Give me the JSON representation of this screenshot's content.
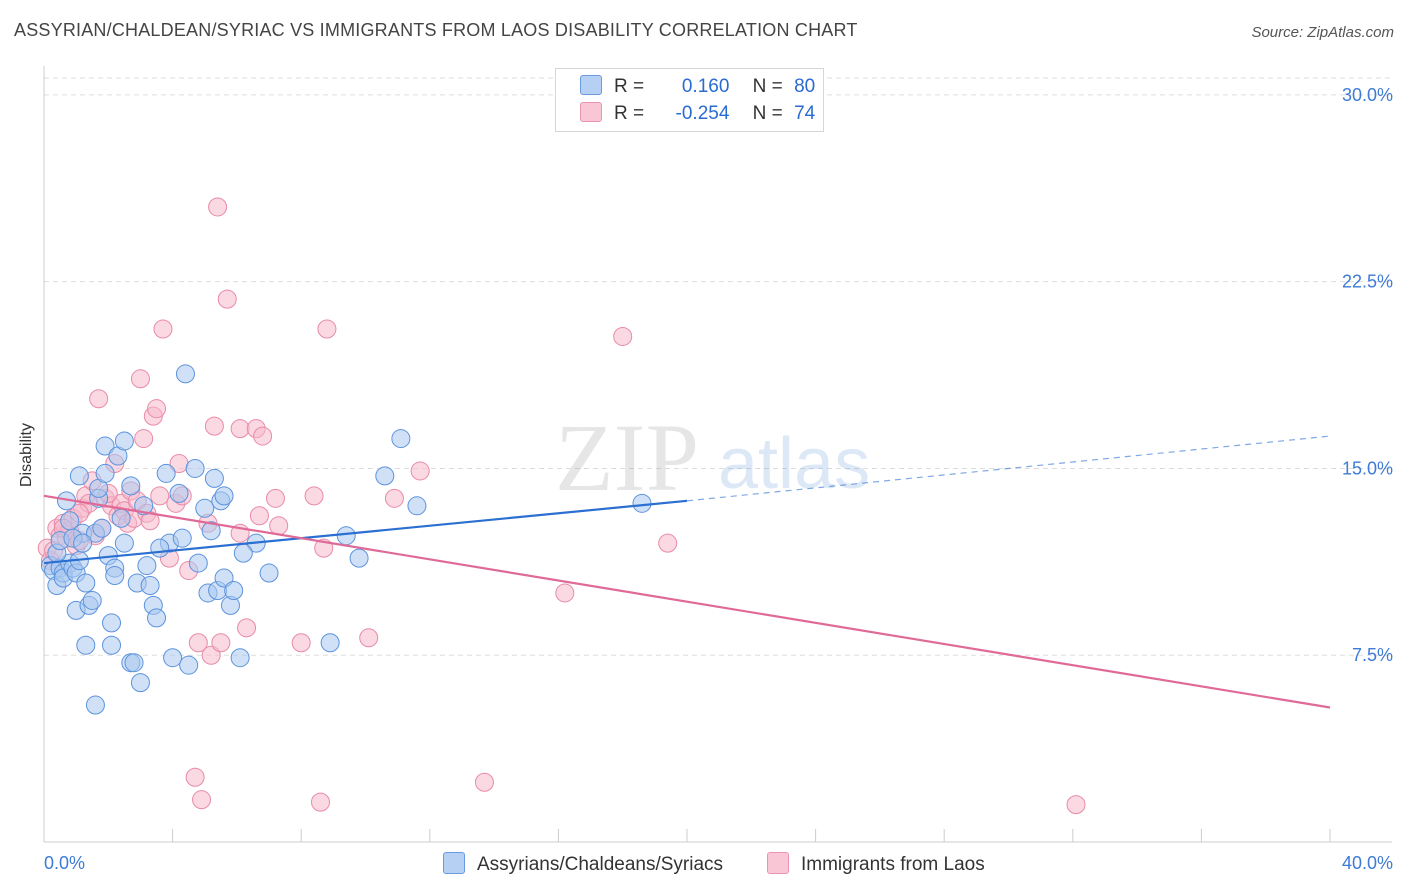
{
  "title": "ASSYRIAN/CHALDEAN/SYRIAC VS IMMIGRANTS FROM LAOS DISABILITY CORRELATION CHART",
  "source": "Source: ZipAtlas.com",
  "watermark": {
    "zip": "ZIP",
    "atlas": "atlas"
  },
  "legend": {
    "rows": [
      {
        "r_label": "R =",
        "r_value": "0.160",
        "n_label": "N =",
        "n_value": "80"
      },
      {
        "r_label": "R =",
        "r_value": "-0.254",
        "n_label": "N =",
        "n_value": "74"
      }
    ]
  },
  "colors": {
    "blue_fill": "#a9c8f0",
    "blue_stroke": "#5b93dd",
    "blue_line": "#2a6fd1",
    "pink_fill": "#f6b9cc",
    "pink_stroke": "#e98aa9",
    "pink_line": "#e06a97",
    "grid": "#dddddd",
    "axis_text": "#3d7bd6"
  },
  "chart_data": {
    "type": "scatter",
    "title": "ASSYRIAN/CHALDEAN/SYRIAC VS IMMIGRANTS FROM LAOS DISABILITY CORRELATION CHART",
    "xlabel": "",
    "ylabel": "Disability",
    "xlim": [
      0,
      40
    ],
    "ylim": [
      0,
      31
    ],
    "x_tick_labels": [
      "0.0%",
      "40.0%"
    ],
    "y_ticks": [
      7.5,
      15.0,
      22.5,
      30.0
    ],
    "y_tick_labels": [
      "7.5%",
      "15.0%",
      "22.5%",
      "30.0%"
    ],
    "grid": true,
    "series": [
      {
        "name": "Assyrians/Chaldeans/Syriacs",
        "color": "#5b93dd",
        "trend": {
          "x0": 0,
          "y0": 11.2,
          "x1": 20,
          "y1": 13.7,
          "dashed_to_x": 40,
          "dashed_to_y": 16.3
        },
        "points": [
          [
            0.2,
            11.1
          ],
          [
            0.3,
            10.9
          ],
          [
            0.4,
            10.3
          ],
          [
            0.5,
            11.0
          ],
          [
            0.6,
            10.8
          ],
          [
            0.6,
            10.6
          ],
          [
            0.7,
            13.7
          ],
          [
            0.8,
            11.2
          ],
          [
            0.8,
            12.9
          ],
          [
            0.9,
            11.0
          ],
          [
            1.0,
            10.8
          ],
          [
            1.0,
            9.3
          ],
          [
            1.1,
            14.7
          ],
          [
            1.1,
            11.3
          ],
          [
            1.2,
            12.4
          ],
          [
            1.3,
            10.4
          ],
          [
            1.3,
            7.9
          ],
          [
            1.4,
            9.5
          ],
          [
            1.5,
            9.7
          ],
          [
            1.6,
            5.5
          ],
          [
            1.6,
            12.4
          ],
          [
            1.7,
            13.8
          ],
          [
            1.7,
            14.2
          ],
          [
            1.8,
            12.6
          ],
          [
            1.9,
            15.9
          ],
          [
            1.9,
            14.8
          ],
          [
            2.0,
            11.5
          ],
          [
            2.1,
            8.8
          ],
          [
            2.1,
            7.9
          ],
          [
            2.2,
            11.0
          ],
          [
            2.3,
            15.5
          ],
          [
            2.4,
            13.0
          ],
          [
            2.5,
            16.1
          ],
          [
            2.5,
            12.0
          ],
          [
            2.7,
            14.3
          ],
          [
            2.7,
            7.2
          ],
          [
            2.8,
            7.2
          ],
          [
            2.9,
            10.4
          ],
          [
            3.0,
            6.4
          ],
          [
            3.1,
            13.5
          ],
          [
            3.2,
            11.1
          ],
          [
            3.3,
            10.3
          ],
          [
            3.4,
            9.5
          ],
          [
            3.5,
            9.0
          ],
          [
            3.8,
            14.8
          ],
          [
            3.9,
            12.0
          ],
          [
            4.0,
            7.4
          ],
          [
            4.2,
            14.0
          ],
          [
            4.3,
            12.2
          ],
          [
            4.4,
            18.8
          ],
          [
            4.5,
            7.1
          ],
          [
            4.7,
            15.0
          ],
          [
            5.0,
            13.4
          ],
          [
            5.1,
            10.0
          ],
          [
            5.2,
            12.5
          ],
          [
            5.3,
            14.6
          ],
          [
            5.4,
            10.1
          ],
          [
            5.5,
            13.7
          ],
          [
            5.6,
            13.9
          ],
          [
            5.6,
            10.6
          ],
          [
            5.8,
            9.5
          ],
          [
            5.9,
            10.1
          ],
          [
            6.1,
            7.4
          ],
          [
            6.6,
            12.0
          ],
          [
            7.0,
            10.8
          ],
          [
            8.9,
            8.0
          ],
          [
            9.4,
            12.3
          ],
          [
            9.8,
            11.4
          ],
          [
            10.6,
            14.7
          ],
          [
            11.1,
            16.2
          ],
          [
            11.6,
            13.5
          ],
          [
            18.6,
            13.6
          ],
          [
            0.4,
            11.6
          ],
          [
            0.5,
            12.1
          ],
          [
            0.9,
            12.2
          ],
          [
            1.2,
            12.0
          ],
          [
            2.2,
            10.7
          ],
          [
            3.6,
            11.8
          ],
          [
            4.8,
            11.2
          ],
          [
            6.2,
            11.6
          ]
        ]
      },
      {
        "name": "Immigrants from Laos",
        "color": "#e98aa9",
        "trend": {
          "x0": 0,
          "y0": 13.9,
          "x1": 40,
          "y1": 5.4
        },
        "points": [
          [
            0.1,
            11.8
          ],
          [
            0.2,
            11.3
          ],
          [
            0.3,
            11.7
          ],
          [
            0.4,
            12.6
          ],
          [
            0.5,
            12.3
          ],
          [
            0.6,
            12.8
          ],
          [
            0.7,
            12.2
          ],
          [
            0.8,
            12.5
          ],
          [
            0.9,
            13.0
          ],
          [
            1.0,
            11.9
          ],
          [
            1.1,
            12.1
          ],
          [
            1.2,
            13.4
          ],
          [
            1.3,
            13.9
          ],
          [
            1.4,
            13.6
          ],
          [
            1.6,
            12.3
          ],
          [
            1.7,
            17.8
          ],
          [
            1.8,
            12.6
          ],
          [
            1.9,
            13.8
          ],
          [
            2.1,
            13.5
          ],
          [
            2.2,
            15.2
          ],
          [
            2.3,
            13.1
          ],
          [
            2.4,
            13.6
          ],
          [
            2.5,
            13.3
          ],
          [
            2.6,
            12.8
          ],
          [
            2.7,
            14.1
          ],
          [
            2.8,
            13.0
          ],
          [
            2.9,
            13.7
          ],
          [
            3.0,
            18.6
          ],
          [
            3.1,
            16.2
          ],
          [
            3.2,
            13.2
          ],
          [
            3.3,
            12.9
          ],
          [
            3.4,
            17.1
          ],
          [
            3.5,
            17.4
          ],
          [
            3.6,
            13.9
          ],
          [
            3.7,
            20.6
          ],
          [
            3.9,
            11.4
          ],
          [
            4.1,
            13.6
          ],
          [
            4.2,
            15.2
          ],
          [
            4.3,
            13.9
          ],
          [
            4.5,
            10.9
          ],
          [
            4.7,
            2.6
          ],
          [
            4.8,
            8.0
          ],
          [
            4.9,
            1.7
          ],
          [
            5.1,
            12.8
          ],
          [
            5.2,
            7.5
          ],
          [
            5.3,
            16.7
          ],
          [
            5.4,
            25.5
          ],
          [
            5.5,
            8.0
          ],
          [
            5.7,
            21.8
          ],
          [
            6.1,
            12.4
          ],
          [
            6.1,
            16.6
          ],
          [
            6.3,
            8.6
          ],
          [
            6.6,
            16.6
          ],
          [
            6.7,
            13.1
          ],
          [
            6.8,
            16.3
          ],
          [
            7.2,
            13.8
          ],
          [
            7.3,
            12.7
          ],
          [
            8.0,
            8.0
          ],
          [
            8.4,
            13.9
          ],
          [
            8.6,
            1.6
          ],
          [
            8.7,
            11.8
          ],
          [
            8.8,
            20.6
          ],
          [
            10.1,
            8.2
          ],
          [
            10.9,
            13.8
          ],
          [
            11.7,
            14.9
          ],
          [
            13.7,
            2.4
          ],
          [
            16.2,
            10.0
          ],
          [
            18.0,
            20.3
          ],
          [
            19.4,
            12.0
          ],
          [
            32.1,
            1.5
          ],
          [
            2.0,
            14.0
          ],
          [
            1.5,
            14.5
          ],
          [
            0.6,
            12.6
          ],
          [
            1.1,
            13.2
          ]
        ]
      }
    ]
  },
  "bottom_legend": {
    "items": [
      {
        "label": "Assyrians/Chaldeans/Syriacs"
      },
      {
        "label": "Immigrants from Laos"
      }
    ]
  }
}
